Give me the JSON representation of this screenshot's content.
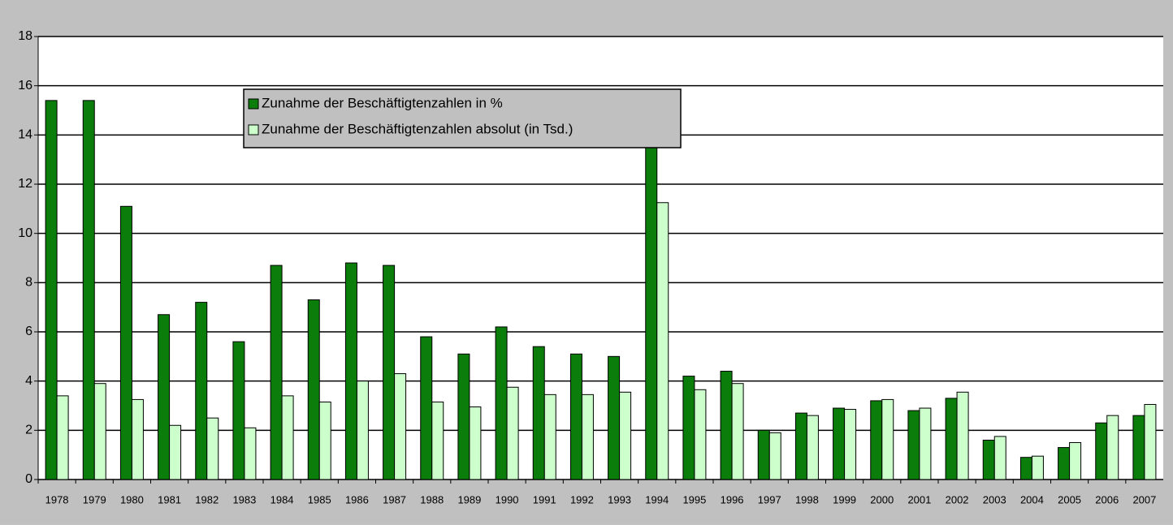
{
  "chart_data": {
    "type": "bar",
    "categories": [
      "1978",
      "1979",
      "1980",
      "1981",
      "1982",
      "1983",
      "1984",
      "1985",
      "1986",
      "1987",
      "1988",
      "1989",
      "1990",
      "1991",
      "1992",
      "1993",
      "1994",
      "1995",
      "1996",
      "1997",
      "1998",
      "1999",
      "2000",
      "2001",
      "2002",
      "2003",
      "2004",
      "2005",
      "2006",
      "2007"
    ],
    "series": [
      {
        "name": "Zunahme der Beschäftigtenzahlen in %",
        "color": "#0a7d0a",
        "values": [
          15.4,
          15.4,
          11.1,
          6.7,
          7.2,
          5.6,
          8.7,
          7.3,
          8.8,
          8.7,
          5.8,
          5.1,
          6.2,
          5.4,
          5.1,
          5.0,
          14.0,
          4.2,
          4.4,
          2.0,
          2.7,
          2.9,
          3.2,
          2.8,
          3.3,
          1.6,
          0.9,
          1.3,
          2.3,
          2.6
        ]
      },
      {
        "name": "Zunahme der Beschäftigtenzahlen absolut (in Tsd.)",
        "color": "#ccffcc",
        "values": [
          3.4,
          3.9,
          3.25,
          2.2,
          2.5,
          2.1,
          3.4,
          3.15,
          4.0,
          4.3,
          3.15,
          2.95,
          3.75,
          3.45,
          3.45,
          3.55,
          11.25,
          3.65,
          3.9,
          1.9,
          2.6,
          2.85,
          3.25,
          2.9,
          3.55,
          1.75,
          0.95,
          1.5,
          2.6,
          3.05
        ]
      }
    ],
    "ylim": [
      0,
      18
    ],
    "yticks": [
      0,
      2,
      4,
      6,
      8,
      10,
      12,
      14,
      16,
      18
    ],
    "grid": true
  }
}
